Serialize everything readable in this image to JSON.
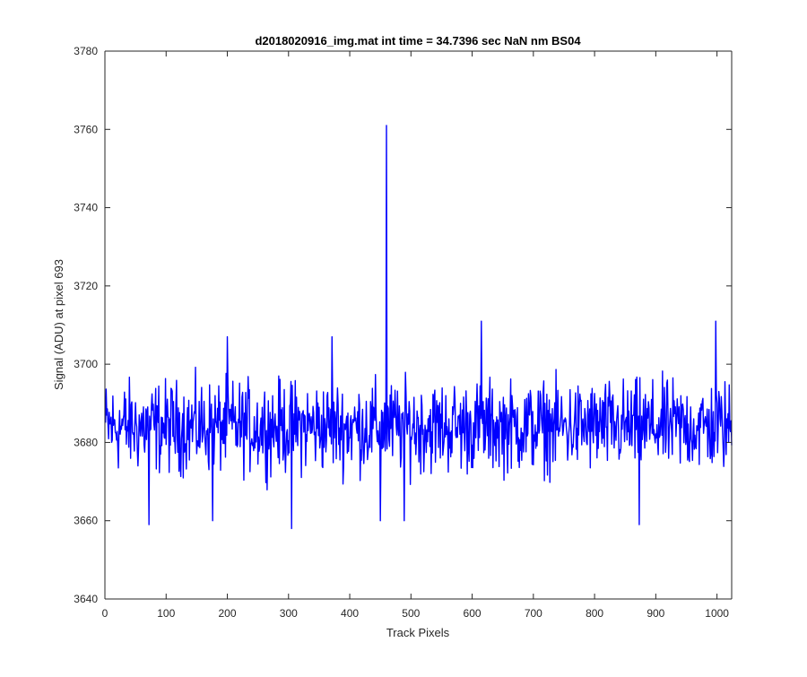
{
  "chart_data": {
    "type": "line",
    "title": "d2018020916_img.mat int time = 34.7396 sec  NaN nm BS04",
    "xlabel": "Track Pixels",
    "ylabel": "Signal (ADU) at pixel 693",
    "xlim": [
      0,
      1024
    ],
    "ylim": [
      3640,
      3780
    ],
    "xticks": [
      0,
      100,
      200,
      300,
      400,
      500,
      600,
      700,
      800,
      900,
      1000
    ],
    "yticks": [
      3640,
      3660,
      3680,
      3700,
      3720,
      3740,
      3760,
      3780
    ],
    "grid": false,
    "legend": "none",
    "series": [
      {
        "color": "#0000ff",
        "x_start": 1,
        "x_step": 1,
        "baseline": 3684,
        "noise_amplitude": 10,
        "spikes": [
          {
            "x": 460,
            "y": 3761
          },
          {
            "x": 371,
            "y": 3707
          },
          {
            "x": 200,
            "y": 3707
          },
          {
            "x": 615,
            "y": 3711
          },
          {
            "x": 998,
            "y": 3711
          },
          {
            "x": 305,
            "y": 3658
          },
          {
            "x": 72,
            "y": 3659
          },
          {
            "x": 873,
            "y": 3659
          },
          {
            "x": 176,
            "y": 3660
          },
          {
            "x": 450,
            "y": 3660
          },
          {
            "x": 489,
            "y": 3660
          }
        ],
        "points": 1024
      }
    ]
  }
}
